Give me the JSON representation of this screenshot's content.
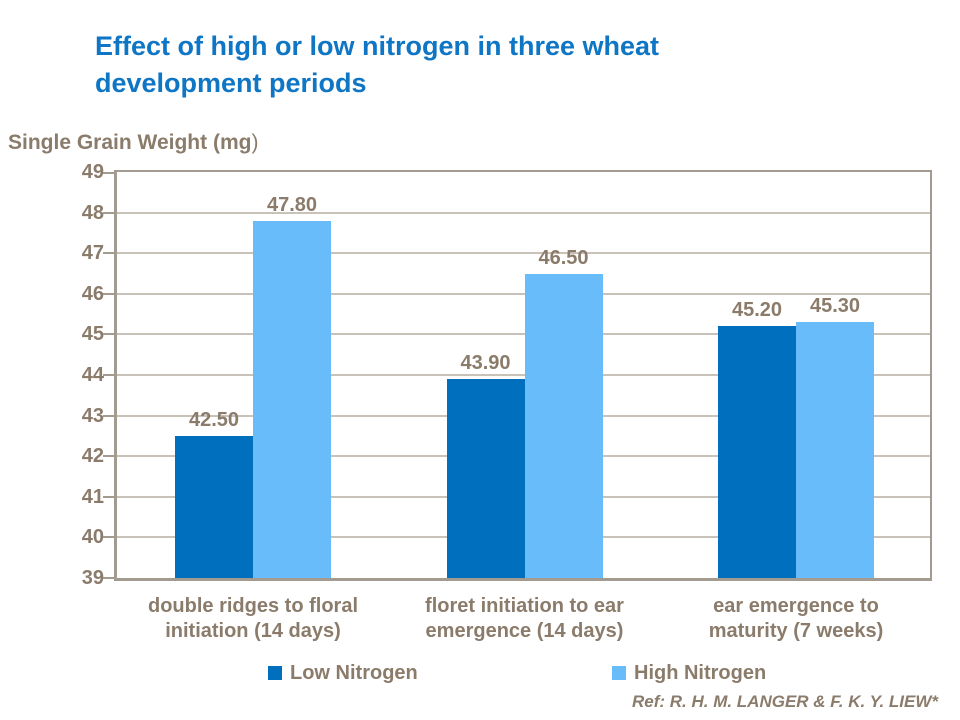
{
  "colors": {
    "title_blue": "#0E76C4",
    "text_brown": "#8B7B6B",
    "axis_line": "#A49B90",
    "gridline": "#C9C2B9",
    "low_nitrogen": "#0070BE",
    "high_nitrogen": "#68BCFA"
  },
  "title": {
    "lines": [
      "Effect of high or low nitrogen in three wheat",
      "development periods"
    ]
  },
  "axis_label": {
    "bold": "Single Grain Weight (mg",
    "light": ")"
  },
  "ref_note": "Ref: R. H. M. LANGER & F. K. Y. LIEW*",
  "legend": [
    {
      "label": "Low Nitrogen",
      "color": "#0070BE"
    },
    {
      "label": "High Nitrogen",
      "color": "#68BCFA"
    }
  ],
  "chart_data": {
    "type": "bar",
    "title": "Effect of high or low nitrogen in three wheat development periods",
    "ylabel": "Single Grain Weight (mg)",
    "xlabel": "",
    "ylim": [
      39,
      49
    ],
    "ytick_step": 1,
    "ytick_labels": [
      "39",
      "40",
      "41",
      "42",
      "43",
      "44",
      "45",
      "46",
      "47",
      "48",
      "49"
    ],
    "grid": true,
    "legend_position": "bottom",
    "categories": [
      "double ridges to floral initiation (14 days)",
      "floret initiation to ear emergence (14 days)",
      "ear emergence to maturity (7 weeks)"
    ],
    "category_lines": [
      [
        "double ridges to floral",
        "initiation (14 days)"
      ],
      [
        "floret initiation to ear",
        "emergence (14 days)"
      ],
      [
        "ear emergence to",
        "maturity (7 weeks)"
      ]
    ],
    "series": [
      {
        "name": "Low Nitrogen",
        "color": "#0070BE",
        "values": [
          42.5,
          43.9,
          45.2
        ]
      },
      {
        "name": "High Nitrogen",
        "color": "#68BCFA",
        "values": [
          47.8,
          46.5,
          45.3
        ]
      }
    ],
    "data_labels": [
      [
        "42.50",
        "43.90",
        "45.20"
      ],
      [
        "47.80",
        "46.50",
        "45.30"
      ]
    ]
  }
}
